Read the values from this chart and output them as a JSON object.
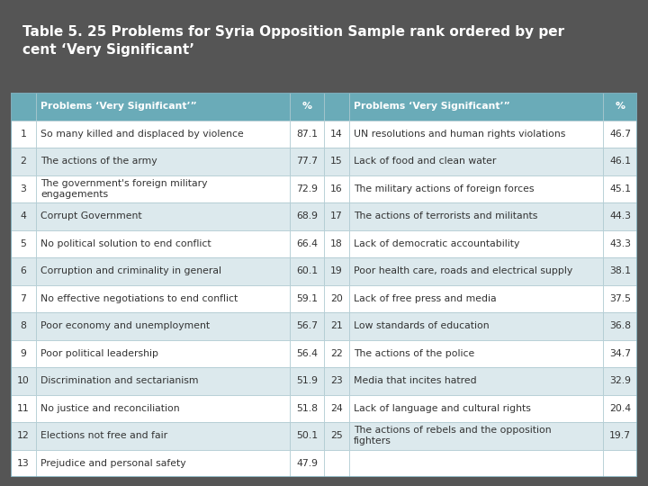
{
  "title": "Table 5. 25 Problems for Syria Opposition Sample rank ordered by per\ncent ‘Very Significant’",
  "title_color": "#ffffff",
  "title_bg": "#555555",
  "header_bg": "#6aabb8",
  "header_text_color": "#ffffff",
  "row_bg_even": "#dce9ed",
  "row_bg_odd": "#ffffff",
  "text_color": "#333333",
  "left_data": [
    [
      1,
      "So many killed and displaced by violence",
      "87.1"
    ],
    [
      2,
      "The actions of the army",
      "77.7"
    ],
    [
      3,
      "The government's foreign military\nengagements",
      "72.9"
    ],
    [
      4,
      "Corrupt Government",
      "68.9"
    ],
    [
      5,
      "No political solution to end conflict",
      "66.4"
    ],
    [
      6,
      "Corruption and criminality in general",
      "60.1"
    ],
    [
      7,
      "No effective negotiations to end conflict",
      "59.1"
    ],
    [
      8,
      "Poor economy and unemployment",
      "56.7"
    ],
    [
      9,
      "Poor political leadership",
      "56.4"
    ],
    [
      10,
      "Discrimination and sectarianism",
      "51.9"
    ],
    [
      11,
      "No justice and reconciliation",
      "51.8"
    ],
    [
      12,
      "Elections not free and fair",
      "50.1"
    ],
    [
      13,
      "Prejudice and personal safety",
      "47.9"
    ]
  ],
  "right_data": [
    [
      14,
      "UN resolutions and human rights violations",
      "46.7"
    ],
    [
      15,
      "Lack of food and clean water",
      "46.1"
    ],
    [
      16,
      "The military actions of foreign forces",
      "45.1"
    ],
    [
      17,
      "The actions of terrorists and militants",
      "44.3"
    ],
    [
      18,
      "Lack of democratic accountability",
      "43.3"
    ],
    [
      19,
      "Poor health care, roads and electrical supply",
      "38.1"
    ],
    [
      20,
      "Lack of free press and media",
      "37.5"
    ],
    [
      21,
      "Low standards of education",
      "36.8"
    ],
    [
      22,
      "The actions of the police",
      "34.7"
    ],
    [
      23,
      "Media that incites hatred",
      "32.9"
    ],
    [
      24,
      "Lack of language and cultural rights",
      "20.4"
    ],
    [
      25,
      "The actions of rebels and the opposition\nfighters",
      "19.7"
    ],
    [
      null,
      "",
      ""
    ]
  ]
}
